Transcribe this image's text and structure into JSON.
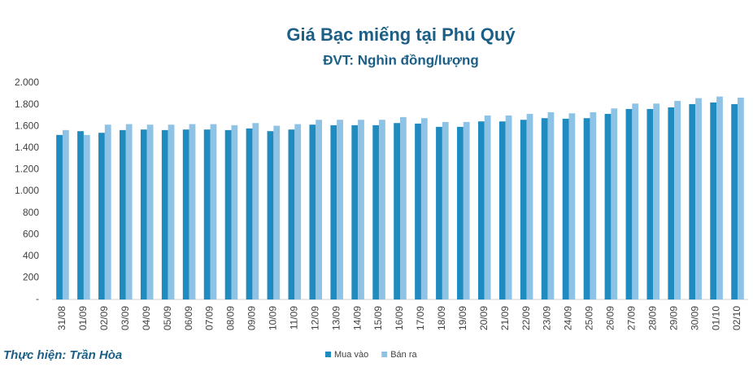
{
  "chart_data": {
    "type": "bar",
    "title": "Giá Bạc miếng tại Phú Quý",
    "subtitle": "ĐVT: Nghìn đồng/lượng",
    "annotation": "Thực hiện: Trần Hòa",
    "categories": [
      "31/08",
      "01/09",
      "02/09",
      "03/09",
      "04/09",
      "05/09",
      "06/09",
      "07/09",
      "08/09",
      "09/09",
      "10/09",
      "11/09",
      "12/09",
      "13/09",
      "14/09",
      "15/09",
      "16/09",
      "17/09",
      "18/09",
      "19/09",
      "20/09",
      "21/09",
      "22/09",
      "23/09",
      "24/09",
      "25/09",
      "26/09",
      "27/09",
      "28/09",
      "29/09",
      "30/09",
      "01/10",
      "02/10"
    ],
    "series": [
      {
        "name": "Mua vào",
        "color": "#1f8bbf",
        "values": [
          1520,
          1555,
          1540,
          1565,
          1570,
          1565,
          1570,
          1570,
          1565,
          1580,
          1555,
          1570,
          1615,
          1610,
          1610,
          1610,
          1630,
          1625,
          1595,
          1595,
          1645,
          1645,
          1660,
          1675,
          1670,
          1675,
          1715,
          1760,
          1760,
          1775,
          1805,
          1820,
          1805
        ]
      },
      {
        "name": "Bán ra",
        "color": "#8fc3e6",
        "values": [
          1565,
          1520,
          1615,
          1620,
          1615,
          1615,
          1620,
          1620,
          1610,
          1630,
          1605,
          1620,
          1660,
          1660,
          1660,
          1660,
          1685,
          1675,
          1640,
          1640,
          1700,
          1700,
          1715,
          1730,
          1720,
          1730,
          1765,
          1810,
          1810,
          1835,
          1860,
          1875,
          1865
        ]
      }
    ],
    "ylim": [
      0,
      2000
    ],
    "yticks": [
      {
        "value": 0,
        "label": "-"
      },
      200,
      400,
      600,
      800,
      {
        "value": 1000,
        "label": "1.000"
      },
      {
        "value": 1200,
        "label": "1.200"
      },
      {
        "value": 1400,
        "label": "1.400"
      },
      {
        "value": 1600,
        "label": "1.600"
      },
      {
        "value": 1800,
        "label": "1.800"
      },
      {
        "value": 2000,
        "label": "2.000"
      }
    ],
    "legend": "bottom"
  }
}
